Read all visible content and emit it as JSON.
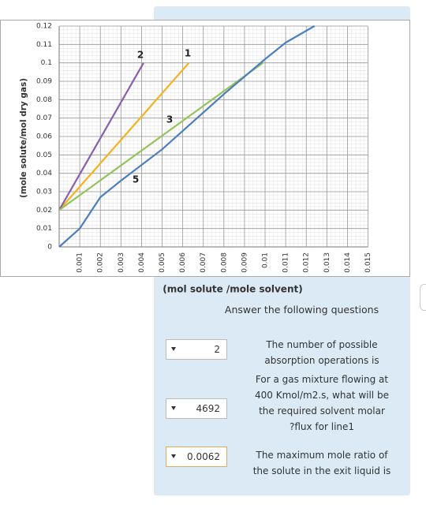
{
  "chart_data": {
    "type": "line",
    "y_label": "(mole solute/mol dry gas)",
    "x_label": "(mol solute /mole solvent)",
    "xlim": [
      0,
      0.015
    ],
    "ylim": [
      0,
      0.12
    ],
    "xticks": [
      0.001,
      0.002,
      0.003,
      0.004,
      0.005,
      0.006,
      0.007,
      0.008,
      0.009,
      0.01,
      0.011,
      0.012,
      0.013,
      0.014,
      0.015
    ],
    "yticks": [
      0,
      0.01,
      0.02,
      0.03,
      0.04,
      0.05,
      0.06,
      0.07,
      0.08,
      0.09,
      0.1,
      0.11,
      0.12
    ],
    "grid": true,
    "series": [
      {
        "name": "1",
        "color": "#f5b21e",
        "x": [
          0,
          0.0063
        ],
        "values": [
          0.02,
          0.1
        ]
      },
      {
        "name": "2",
        "color": "#8a5fae",
        "x": [
          0,
          0.0041
        ],
        "values": [
          0.02,
          0.1
        ]
      },
      {
        "name": "3",
        "color": "#93c35a",
        "x": [
          0,
          0.0099
        ],
        "values": [
          0.02,
          0.1
        ]
      },
      {
        "name": "5",
        "color": "#4a7ebf",
        "x": [
          0,
          0.001,
          0.002,
          0.003,
          0.005,
          0.008,
          0.01,
          0.011,
          0.0124
        ],
        "values": [
          0,
          0.01,
          0.027,
          0.036,
          0.053,
          0.083,
          0.102,
          0.111,
          0.12
        ]
      }
    ]
  },
  "quiz": {
    "heading": "Answer the following questions",
    "questions": [
      {
        "answer": "2",
        "prompt_lines": [
          "The number of possible",
          "absorption operations is"
        ]
      },
      {
        "answer": "4692",
        "prompt_lines": [
          "For a  gas mixture flowing at",
          "400 Kmol/m2.s, what will be",
          "the required solvent molar",
          "?flux for line1"
        ]
      },
      {
        "answer": "0.0062",
        "prompt_lines": [
          "The maximum mole ratio of",
          "the solute in the exit liquid is"
        ]
      }
    ]
  }
}
